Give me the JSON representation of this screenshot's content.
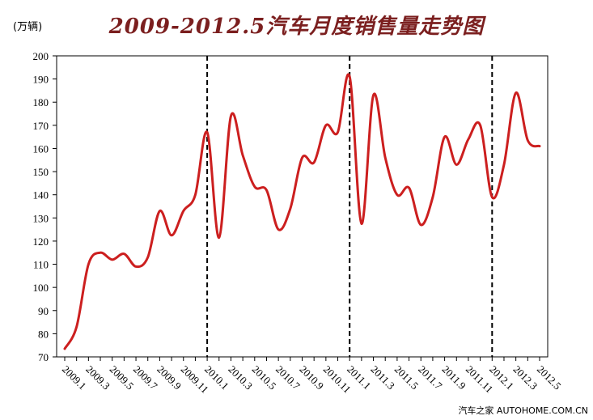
{
  "header": {
    "title": "2009-2012.5汽车月度销售量走势图",
    "unit": "(万辆)"
  },
  "watermark": "汽车之家 AUTOHOME.COM.CN",
  "chart_data": {
    "type": "line",
    "title": "2009-2012.5汽车月度销售量走势图",
    "ylabel": "(万辆)",
    "ylim": [
      70,
      200
    ],
    "yticks": [
      70,
      80,
      90,
      100,
      110,
      120,
      130,
      140,
      150,
      160,
      170,
      180,
      190,
      200
    ],
    "xlabels": [
      "2009.1",
      "2009.3",
      "2009.5",
      "2009.7",
      "2009.9",
      "2009.11",
      "2010.1",
      "2010.3",
      "2010.5",
      "2010.7",
      "2010.9",
      "2010.11",
      "2011.1",
      "2011.3",
      "2011.5",
      "2011.7",
      "2011.9",
      "2011.11",
      "2012.1",
      "2012.3",
      "2012.5"
    ],
    "x": [
      "2009.1",
      "2009.2",
      "2009.3",
      "2009.4",
      "2009.5",
      "2009.6",
      "2009.7",
      "2009.8",
      "2009.9",
      "2009.10",
      "2009.11",
      "2009.12",
      "2010.1",
      "2010.2",
      "2010.3",
      "2010.4",
      "2010.5",
      "2010.6",
      "2010.7",
      "2010.8",
      "2010.9",
      "2010.10",
      "2010.11",
      "2010.12",
      "2011.1",
      "2011.2",
      "2011.3",
      "2011.4",
      "2011.5",
      "2011.6",
      "2011.7",
      "2011.8",
      "2011.9",
      "2011.10",
      "2011.11",
      "2011.12",
      "2012.1",
      "2012.2",
      "2012.3",
      "2012.4",
      "2012.5"
    ],
    "series": [
      {
        "color": "#cc1f1f",
        "values": [
          73.5,
          83,
          110,
          115,
          112,
          114.5,
          109,
          113,
          133,
          122.5,
          133,
          140,
          167,
          121.5,
          174,
          157,
          143.5,
          142,
          125,
          134,
          156,
          154,
          170,
          167,
          191,
          127.5,
          183,
          156,
          140,
          143,
          127,
          139,
          165,
          153,
          164,
          170,
          139,
          153,
          184,
          163.5,
          161
        ]
      }
    ],
    "dividers": [
      "2010.1",
      "2011.1",
      "2012.1"
    ],
    "grid": false
  }
}
